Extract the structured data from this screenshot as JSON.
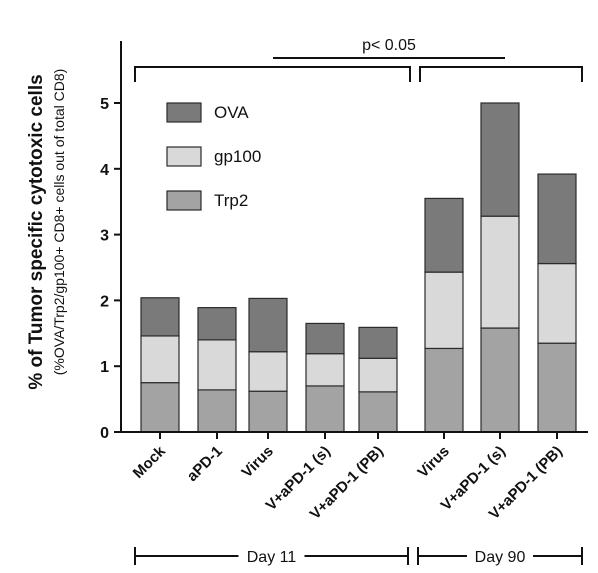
{
  "chart_data": {
    "type": "bar",
    "stacked": true,
    "ylabel": "% of Tumor specific cytotoxic cells",
    "ylabel_sub": "(%OVA/Trp2/gp100+ CD8+ cells out of total CD8)",
    "ylim": [
      0,
      5
    ],
    "yticks": [
      0,
      1,
      2,
      3,
      4,
      5
    ],
    "categories": [
      "Mock",
      "aPD-1",
      "Virus",
      "V+aPD-1 (s)",
      "V+aPD-1 (PB)",
      "Virus",
      "V+aPD-1 (s)",
      "V+aPD-1 (PB)"
    ],
    "series": [
      {
        "name": "Trp2",
        "color": "#a3a3a3",
        "values": [
          0.75,
          0.64,
          0.62,
          0.7,
          0.61,
          1.27,
          1.58,
          1.35
        ]
      },
      {
        "name": "gp100",
        "color": "#d9d9d9",
        "values": [
          0.71,
          0.76,
          0.6,
          0.49,
          0.51,
          1.16,
          1.7,
          1.21
        ]
      },
      {
        "name": "OVA",
        "color": "#7a7a7a",
        "values": [
          0.58,
          0.49,
          0.81,
          0.46,
          0.47,
          1.12,
          1.72,
          1.36
        ]
      }
    ],
    "legend_order": [
      "OVA",
      "gp100",
      "Trp2"
    ],
    "legend_position": "top-left",
    "groups": [
      {
        "label": "Day 11",
        "from": 0,
        "to": 4
      },
      {
        "label": "Day 90",
        "from": 5,
        "to": 7
      }
    ],
    "annotation": {
      "text": "p< 0.05"
    },
    "grid": false
  }
}
